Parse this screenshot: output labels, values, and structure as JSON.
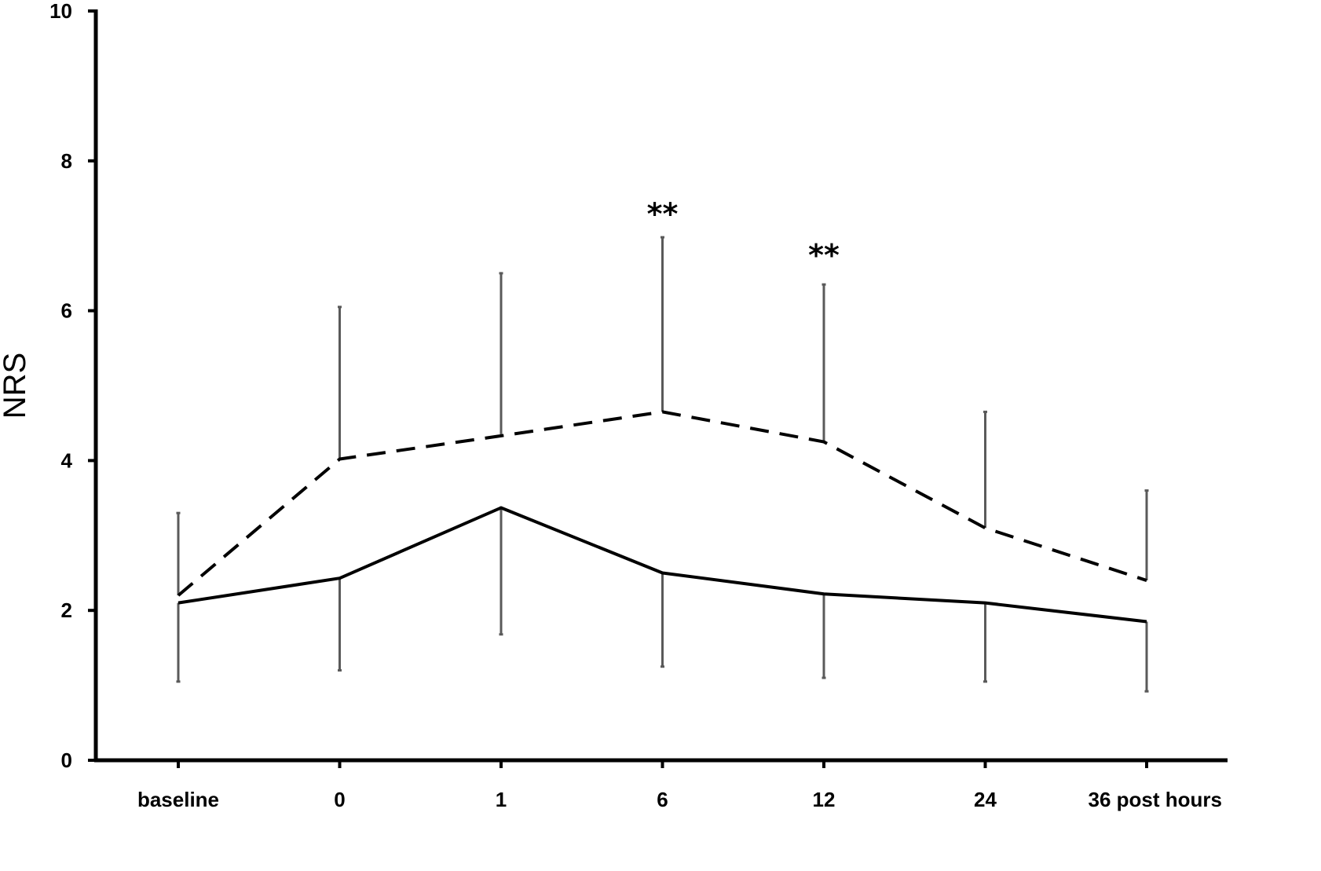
{
  "chart_data": {
    "type": "line",
    "title": "",
    "xlabel": "",
    "ylabel": "NRS",
    "categories": [
      "baseline",
      "0",
      "1",
      "6",
      "12",
      "24",
      "36 post hours"
    ],
    "ylim": [
      0,
      10
    ],
    "yticks": [
      0,
      2,
      4,
      6,
      8,
      10
    ],
    "grid": false,
    "legend": "none",
    "series": [
      {
        "style": "dashed",
        "color": "#000000",
        "values": [
          2.2,
          4.02,
          4.33,
          4.65,
          4.25,
          3.1,
          2.4
        ],
        "error_upper": [
          3.3,
          6.05,
          6.5,
          6.98,
          6.35,
          4.65,
          3.6
        ]
      },
      {
        "style": "solid",
        "color": "#000000",
        "values": [
          2.1,
          2.43,
          3.37,
          2.5,
          2.22,
          2.1,
          1.85
        ],
        "error_lower": [
          1.05,
          1.2,
          1.68,
          1.25,
          1.1,
          1.05,
          0.92
        ]
      }
    ],
    "annotations": [
      {
        "category": "6",
        "y": 7.3,
        "text": "**"
      },
      {
        "category": "12",
        "y": 6.75,
        "text": "**"
      }
    ],
    "error_bar_color": "#5a5a5a"
  }
}
